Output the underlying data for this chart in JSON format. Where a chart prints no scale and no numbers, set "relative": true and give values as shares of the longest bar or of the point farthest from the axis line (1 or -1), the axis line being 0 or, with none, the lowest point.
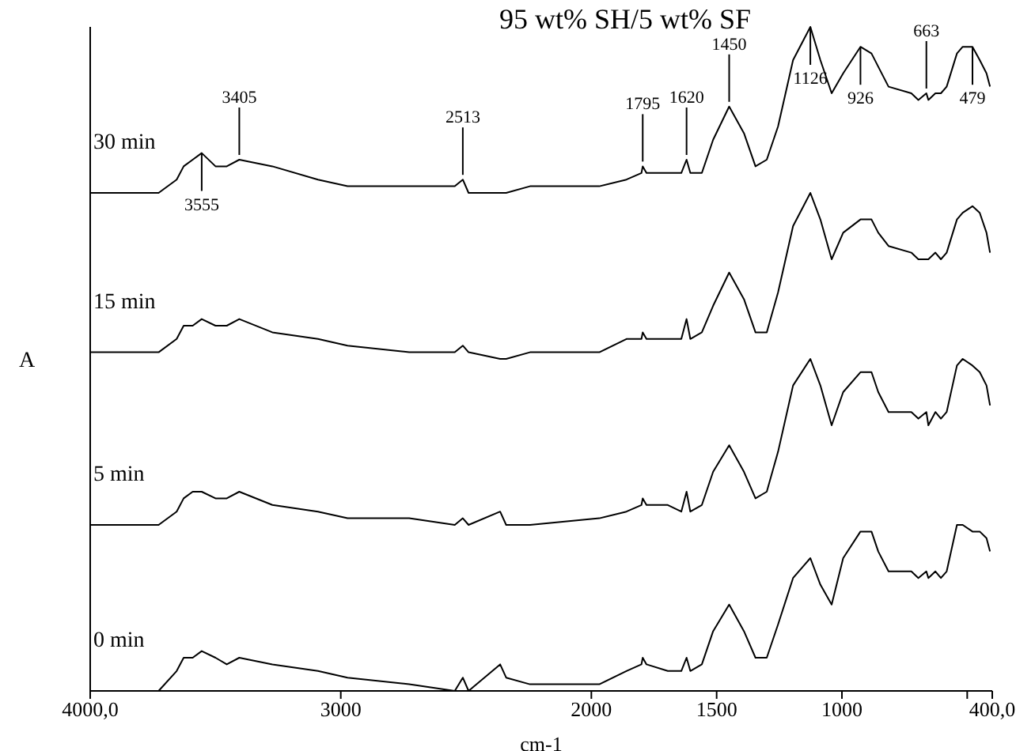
{
  "chart_data": {
    "type": "line",
    "title": "95 wt% SH/5 wt% SF",
    "xlabel": "cm-1",
    "ylabel": "A",
    "relative": true,
    "x": [
      4000,
      3727,
      3655,
      3627,
      3591,
      3555,
      3500,
      3455,
      3405,
      3273,
      3091,
      2973,
      2727,
      2545,
      2513,
      2490,
      2364,
      2340,
      2245,
      1968,
      1860,
      1800,
      1795,
      1780,
      1695,
      1641,
      1620,
      1605,
      1559,
      1514,
      1450,
      1391,
      1345,
      1300,
      1255,
      1195,
      1126,
      1086,
      1041,
      995,
      926,
      882,
      855,
      814,
      723,
      695,
      663,
      655,
      627,
      605,
      582,
      541,
      518,
      479,
      450,
      423,
      409
    ],
    "xlim": [
      4000,
      400
    ],
    "xticks": [
      {
        "value": 4000,
        "label": "4000,0"
      },
      3000,
      2000,
      1500,
      1000,
      {
        "value": 500,
        "label": null
      },
      {
        "value": 400,
        "label": "400,0"
      }
    ],
    "series": [
      {
        "name": "30 min",
        "color": "#000000",
        "values": [
          0.75,
          0.75,
          0.77,
          0.79,
          0.8,
          0.81,
          0.79,
          0.79,
          0.8,
          0.79,
          0.77,
          0.76,
          0.76,
          0.76,
          0.77,
          0.75,
          0.75,
          0.75,
          0.76,
          0.76,
          0.77,
          0.78,
          0.79,
          0.78,
          0.78,
          0.78,
          0.8,
          0.78,
          0.78,
          0.83,
          0.88,
          0.84,
          0.79,
          0.8,
          0.85,
          0.95,
          1,
          0.95,
          0.9,
          0.93,
          0.97,
          0.96,
          0.94,
          0.91,
          0.9,
          0.89,
          0.9,
          0.89,
          0.9,
          0.9,
          0.91,
          0.96,
          0.97,
          0.97,
          0.95,
          0.93,
          0.91
        ]
      },
      {
        "name": "15 min",
        "color": "#000000",
        "values": [
          0.51,
          0.51,
          0.53,
          0.55,
          0.55,
          0.56,
          0.55,
          0.55,
          0.56,
          0.54,
          0.53,
          0.52,
          0.51,
          0.51,
          0.52,
          0.51,
          0.5,
          0.5,
          0.51,
          0.51,
          0.53,
          0.53,
          0.54,
          0.53,
          0.53,
          0.53,
          0.56,
          0.53,
          0.54,
          0.58,
          0.63,
          0.59,
          0.54,
          0.54,
          0.6,
          0.7,
          0.75,
          0.71,
          0.65,
          0.69,
          0.71,
          0.71,
          0.69,
          0.67,
          0.66,
          0.65,
          0.65,
          0.65,
          0.66,
          0.65,
          0.66,
          0.71,
          0.72,
          0.73,
          0.72,
          0.69,
          0.66
        ]
      },
      {
        "name": "5 min",
        "color": "#000000",
        "values": [
          0.25,
          0.25,
          0.27,
          0.29,
          0.3,
          0.3,
          0.29,
          0.29,
          0.3,
          0.28,
          0.27,
          0.26,
          0.26,
          0.25,
          0.26,
          0.25,
          0.27,
          0.25,
          0.25,
          0.26,
          0.27,
          0.28,
          0.29,
          0.28,
          0.28,
          0.27,
          0.3,
          0.27,
          0.28,
          0.33,
          0.37,
          0.33,
          0.29,
          0.3,
          0.36,
          0.46,
          0.5,
          0.46,
          0.4,
          0.45,
          0.48,
          0.48,
          0.45,
          0.42,
          0.42,
          0.41,
          0.42,
          0.4,
          0.42,
          0.41,
          0.42,
          0.49,
          0.5,
          0.49,
          0.48,
          0.46,
          0.43
        ]
      },
      {
        "name": "0 min",
        "color": "#000000",
        "values": [
          0,
          0.0,
          0.03,
          0.05,
          0.05,
          0.06,
          0.05,
          0.04,
          0.05,
          0.04,
          0.03,
          0.02,
          0.01,
          0.0,
          0.02,
          0.0,
          0.04,
          0.02,
          0.01,
          0.01,
          0.03,
          0.04,
          0.05,
          0.04,
          0.03,
          0.03,
          0.05,
          0.03,
          0.04,
          0.09,
          0.13,
          0.09,
          0.05,
          0.05,
          0.1,
          0.17,
          0.2,
          0.16,
          0.13,
          0.2,
          0.24,
          0.24,
          0.21,
          0.18,
          0.18,
          0.17,
          0.18,
          0.17,
          0.18,
          0.17,
          0.18,
          0.25,
          0.25,
          0.24,
          0.24,
          0.23,
          0.21
        ]
      }
    ],
    "annotations": [
      {
        "text": "3555",
        "x": 3555,
        "y": 0.81
      },
      {
        "text": "3405",
        "x": 3405,
        "y": 0.8
      },
      {
        "text": "2513",
        "x": 2513,
        "y": 0.77
      },
      {
        "text": "1795",
        "x": 1795,
        "y": 0.79
      },
      {
        "text": "1620",
        "x": 1620,
        "y": 0.8
      },
      {
        "text": "1450",
        "x": 1450,
        "y": 0.88
      },
      {
        "text": "1126",
        "x": 1126,
        "y": 1
      },
      {
        "text": "926",
        "x": 926,
        "y": 0.97
      },
      {
        "text": "663",
        "x": 663,
        "y": 0.9
      },
      {
        "text": "479",
        "x": 479,
        "y": 0.97
      }
    ]
  }
}
